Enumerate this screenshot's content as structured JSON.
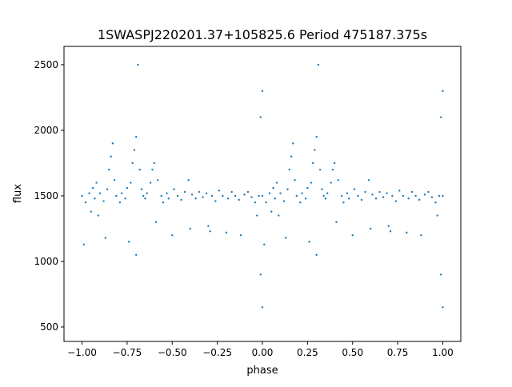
{
  "chart_data": {
    "type": "scatter",
    "title": "1SWASPJ220201.37+105825.6 Period 475187.375s",
    "xlabel": "phase",
    "ylabel": "flux",
    "xlim": [
      -1.1,
      1.1
    ],
    "ylim": [
      390,
      2640
    ],
    "xticks": [
      -1.0,
      -0.75,
      -0.5,
      -0.25,
      0.0,
      0.25,
      0.5,
      0.75,
      1.0
    ],
    "xtick_labels": [
      "−1.00",
      "−0.75",
      "−0.50",
      "−0.25",
      "0.00",
      "0.25",
      "0.50",
      "0.75",
      "1.00"
    ],
    "yticks": [
      500,
      1000,
      1500,
      2000,
      2500
    ],
    "ytick_labels": [
      "500",
      "1000",
      "1500",
      "2000",
      "2500"
    ],
    "grid": false,
    "marker_color": "#1f77b4",
    "points": [
      [
        -1.0,
        1500
      ],
      [
        -0.99,
        1130
      ],
      [
        -0.98,
        1450
      ],
      [
        -0.96,
        1520
      ],
      [
        -0.95,
        1380
      ],
      [
        -0.94,
        1560
      ],
      [
        -0.93,
        1480
      ],
      [
        -0.92,
        1600
      ],
      [
        -0.91,
        1350
      ],
      [
        -0.9,
        1520
      ],
      [
        -0.88,
        1460
      ],
      [
        -0.87,
        1180
      ],
      [
        -0.86,
        1550
      ],
      [
        -0.85,
        1700
      ],
      [
        -0.84,
        1800
      ],
      [
        -0.83,
        1900
      ],
      [
        -0.82,
        1620
      ],
      [
        -0.81,
        1500
      ],
      [
        -0.79,
        1450
      ],
      [
        -0.78,
        1520
      ],
      [
        -0.76,
        1480
      ],
      [
        -0.75,
        1560
      ],
      [
        -0.74,
        1150
      ],
      [
        -0.73,
        1600
      ],
      [
        -0.72,
        1750
      ],
      [
        -0.71,
        1850
      ],
      [
        -0.7,
        1950
      ],
      [
        -0.7,
        1050
      ],
      [
        -0.69,
        2500
      ],
      [
        -0.68,
        1700
      ],
      [
        -0.67,
        1550
      ],
      [
        -0.66,
        1500
      ],
      [
        -0.65,
        1480
      ],
      [
        -0.64,
        1520
      ],
      [
        -0.62,
        1600
      ],
      [
        -0.61,
        1700
      ],
      [
        -0.6,
        1750
      ],
      [
        -0.59,
        1300
      ],
      [
        -0.58,
        1620
      ],
      [
        -0.56,
        1500
      ],
      [
        -0.55,
        1450
      ],
      [
        -0.53,
        1520
      ],
      [
        -0.52,
        1480
      ],
      [
        -0.5,
        1200
      ],
      [
        -0.49,
        1550
      ],
      [
        -0.47,
        1500
      ],
      [
        -0.45,
        1470
      ],
      [
        -0.43,
        1530
      ],
      [
        -0.41,
        1620
      ],
      [
        -0.4,
        1250
      ],
      [
        -0.39,
        1510
      ],
      [
        -0.37,
        1480
      ],
      [
        -0.35,
        1530
      ],
      [
        -0.33,
        1490
      ],
      [
        -0.31,
        1520
      ],
      [
        -0.3,
        1270
      ],
      [
        -0.29,
        1230
      ],
      [
        -0.28,
        1500
      ],
      [
        -0.26,
        1460
      ],
      [
        -0.24,
        1540
      ],
      [
        -0.22,
        1500
      ],
      [
        -0.2,
        1220
      ],
      [
        -0.19,
        1480
      ],
      [
        -0.17,
        1530
      ],
      [
        -0.15,
        1500
      ],
      [
        -0.13,
        1470
      ],
      [
        -0.12,
        1200
      ],
      [
        -0.1,
        1510
      ],
      [
        -0.08,
        1530
      ],
      [
        -0.06,
        1490
      ],
      [
        -0.04,
        1450
      ],
      [
        -0.03,
        1350
      ],
      [
        -0.02,
        1500
      ],
      [
        -0.01,
        900
      ],
      [
        -0.01,
        2100
      ],
      [
        0.0,
        1500
      ],
      [
        0.0,
        650
      ],
      [
        0.0,
        2300
      ],
      [
        0.01,
        1130
      ],
      [
        0.02,
        1450
      ],
      [
        0.04,
        1520
      ],
      [
        0.05,
        1380
      ],
      [
        0.06,
        1560
      ],
      [
        0.07,
        1480
      ],
      [
        0.08,
        1600
      ],
      [
        0.09,
        1350
      ],
      [
        0.1,
        1520
      ],
      [
        0.12,
        1460
      ],
      [
        0.13,
        1180
      ],
      [
        0.14,
        1550
      ],
      [
        0.15,
        1700
      ],
      [
        0.16,
        1800
      ],
      [
        0.17,
        1900
      ],
      [
        0.18,
        1620
      ],
      [
        0.19,
        1500
      ],
      [
        0.21,
        1450
      ],
      [
        0.22,
        1520
      ],
      [
        0.24,
        1480
      ],
      [
        0.25,
        1560
      ],
      [
        0.26,
        1150
      ],
      [
        0.27,
        1600
      ],
      [
        0.28,
        1750
      ],
      [
        0.29,
        1850
      ],
      [
        0.3,
        1950
      ],
      [
        0.3,
        1050
      ],
      [
        0.31,
        2500
      ],
      [
        0.32,
        1700
      ],
      [
        0.33,
        1550
      ],
      [
        0.34,
        1500
      ],
      [
        0.35,
        1480
      ],
      [
        0.36,
        1520
      ],
      [
        0.38,
        1600
      ],
      [
        0.39,
        1700
      ],
      [
        0.4,
        1750
      ],
      [
        0.41,
        1300
      ],
      [
        0.42,
        1620
      ],
      [
        0.44,
        1500
      ],
      [
        0.45,
        1450
      ],
      [
        0.47,
        1520
      ],
      [
        0.48,
        1480
      ],
      [
        0.5,
        1200
      ],
      [
        0.51,
        1550
      ],
      [
        0.53,
        1500
      ],
      [
        0.55,
        1470
      ],
      [
        0.57,
        1530
      ],
      [
        0.59,
        1620
      ],
      [
        0.6,
        1250
      ],
      [
        0.61,
        1510
      ],
      [
        0.63,
        1480
      ],
      [
        0.65,
        1530
      ],
      [
        0.67,
        1490
      ],
      [
        0.69,
        1520
      ],
      [
        0.7,
        1270
      ],
      [
        0.71,
        1230
      ],
      [
        0.72,
        1500
      ],
      [
        0.74,
        1460
      ],
      [
        0.76,
        1540
      ],
      [
        0.78,
        1500
      ],
      [
        0.8,
        1220
      ],
      [
        0.81,
        1480
      ],
      [
        0.83,
        1530
      ],
      [
        0.85,
        1500
      ],
      [
        0.87,
        1470
      ],
      [
        0.88,
        1200
      ],
      [
        0.9,
        1510
      ],
      [
        0.92,
        1530
      ],
      [
        0.94,
        1490
      ],
      [
        0.96,
        1450
      ],
      [
        0.97,
        1350
      ],
      [
        0.98,
        1500
      ],
      [
        0.99,
        900
      ],
      [
        0.99,
        2100
      ],
      [
        1.0,
        1500
      ],
      [
        1.0,
        650
      ],
      [
        1.0,
        2300
      ]
    ]
  }
}
